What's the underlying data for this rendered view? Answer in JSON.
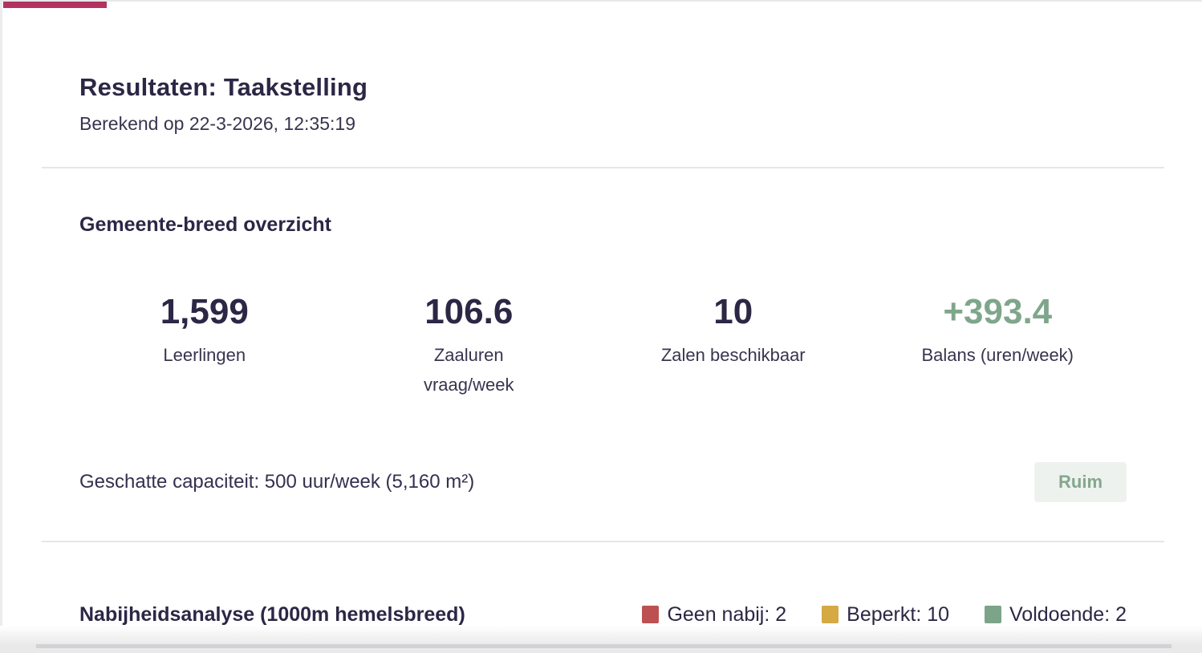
{
  "colors": {
    "accent": "#b23260",
    "positive": "#7fa68c",
    "badge_bg": "#eef2ef",
    "badge_text": "#84a78d"
  },
  "header": {
    "title": "Resultaten: Taakstelling",
    "subtitle": "Berekend op 22-3-2026, 12:35:19"
  },
  "overview": {
    "heading": "Gemeente-breed overzicht",
    "stats": [
      {
        "value": "1,599",
        "label": "Leerlingen"
      },
      {
        "value": "106.6",
        "label": "Zaaluren\nvraag/week"
      },
      {
        "value": "10",
        "label": "Zalen beschikbaar"
      },
      {
        "value": "+393.4",
        "label": "Balans (uren/week)",
        "color": "#7fa68c"
      }
    ],
    "capacity_text": "Geschatte capaciteit: 500 uur/week (5,160 m²)",
    "badge": {
      "label": "Ruim"
    }
  },
  "proximity": {
    "heading": "Nabijheidsanalyse (1000m hemelsbreed)",
    "legend": [
      {
        "label": "Geen nabij: 2",
        "color": "#bd5151"
      },
      {
        "label": "Beperkt: 10",
        "color": "#d5a944"
      },
      {
        "label": "Voldoende: 2",
        "color": "#7ca489"
      }
    ]
  }
}
